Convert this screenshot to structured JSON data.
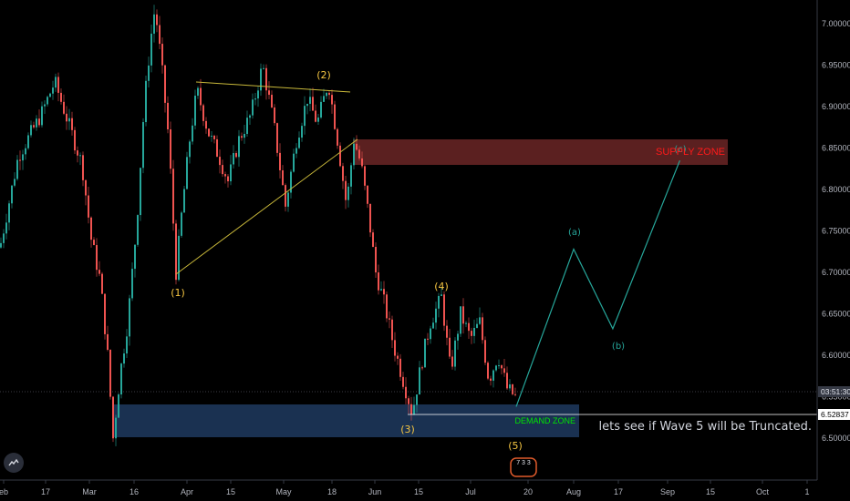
{
  "chart_data": {
    "type": "candlestick",
    "instrument_note": "lets see if Wave 5 will be Truncated.",
    "y_ticks": [
      "7.00000",
      "6.95000",
      "6.90000",
      "6.85000",
      "6.80000",
      "6.75000",
      "6.70000",
      "6.65000",
      "6.60000",
      "6.55000",
      "6.50000"
    ],
    "x_ticks": [
      "eb",
      "17",
      "Mar",
      "16",
      "Apr",
      "15",
      "May",
      "18",
      "Jun",
      "15",
      "Jul",
      "20",
      "Aug",
      "17",
      "Sep",
      "15",
      "Oct",
      "1"
    ],
    "price_tags": [
      {
        "label": "03:51:30",
        "value": 6.5483
      },
      {
        "label": "6.52837",
        "value": 6.52837
      }
    ],
    "supply_zone": {
      "label": "SUPPLY ZONE",
      "from": 6.8292,
      "to": 6.8607
    },
    "demand_zone": {
      "label": "DEMAND ZONE",
      "from": 6.502,
      "to": 6.5375
    },
    "wave_labels": [
      "(1)",
      "(2)",
      "(3)",
      "(4)",
      "(5)"
    ],
    "projection_labels": [
      "(a)",
      "(b)",
      "(c)"
    ],
    "projection_path": [
      {
        "date": "2020-07-15",
        "price": 6.538
      },
      {
        "date": "2020-08-01",
        "price": 6.728
      },
      {
        "date": "2020-08-15",
        "price": 6.632
      },
      {
        "date": "2020-09-05",
        "price": 6.835
      }
    ],
    "badge_text": "7 3 3"
  }
}
